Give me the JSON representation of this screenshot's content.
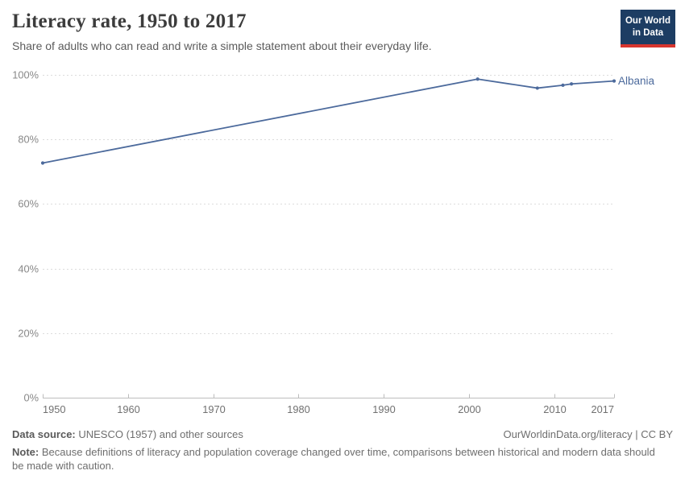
{
  "header": {
    "title": "Literacy rate, 1950 to 2017",
    "subtitle": "Share of adults who can read and write a simple statement about their everyday life."
  },
  "logo": {
    "line1": "Our World",
    "line2": "in Data",
    "bg_color": "#1d3d63",
    "accent_color": "#d7352e"
  },
  "chart_data": {
    "type": "line",
    "title": "Literacy rate, 1950 to 2017",
    "x": [
      1950,
      2001,
      2008,
      2011,
      2012,
      2017
    ],
    "series": [
      {
        "name": "Albania",
        "color": "#4c6a9c",
        "values": [
          72.7,
          98.7,
          95.9,
          96.8,
          97.2,
          98.1
        ]
      }
    ],
    "xlim": [
      1950,
      2017
    ],
    "ylim": [
      0,
      100
    ],
    "x_ticks": [
      {
        "value": 1950,
        "label": "1950"
      },
      {
        "value": 1960,
        "label": "1960"
      },
      {
        "value": 1970,
        "label": "1970"
      },
      {
        "value": 1980,
        "label": "1980"
      },
      {
        "value": 1990,
        "label": "1990"
      },
      {
        "value": 2000,
        "label": "2000"
      },
      {
        "value": 2010,
        "label": "2010"
      },
      {
        "value": 2017,
        "label": "2017"
      }
    ],
    "y_ticks": [
      {
        "value": 0,
        "label": "0%"
      },
      {
        "value": 20,
        "label": "20%"
      },
      {
        "value": 40,
        "label": "40%"
      },
      {
        "value": 60,
        "label": "60%"
      },
      {
        "value": 80,
        "label": "80%"
      },
      {
        "value": 100,
        "label": "100%"
      }
    ],
    "grid": "horizontal-dashed",
    "legend_position": "end-of-line-label"
  },
  "footer": {
    "datasource_label": "Data source:",
    "datasource_text": " UNESCO (1957) and other sources",
    "link_text": "OurWorldinData.org/literacy | CC BY",
    "note_label": "Note:",
    "note_text": " Because definitions of literacy and population coverage changed over time, comparisons between historical and modern data should be made with caution."
  }
}
